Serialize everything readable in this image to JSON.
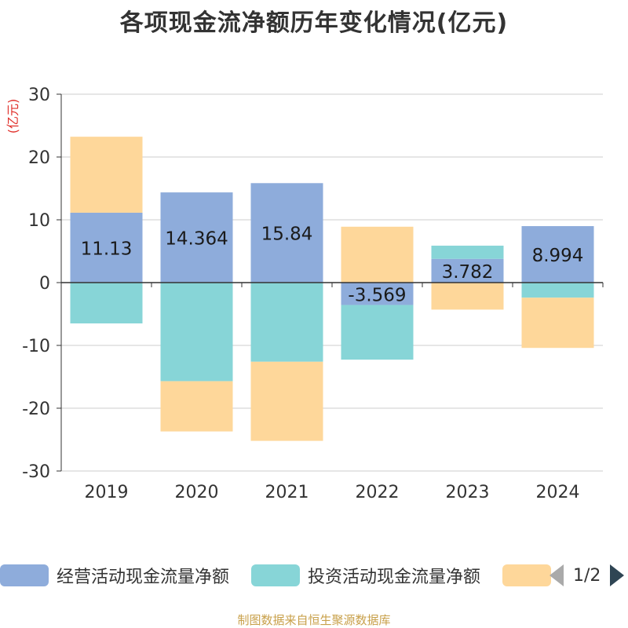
{
  "chart_data": {
    "type": "bar",
    "stacked": true,
    "title": "各项现金流净额历年变化情况(亿元)",
    "ylabel": "(亿元)",
    "xlabel": "",
    "ylim": [
      -30,
      30
    ],
    "yticks": [
      30,
      20,
      10,
      0,
      -10,
      -20,
      -30
    ],
    "categories": [
      "2019",
      "2020",
      "2021",
      "2022",
      "2023",
      "2024"
    ],
    "series": [
      {
        "name": "经营活动现金流量净额",
        "color": "#8eacdb",
        "values": [
          11.13,
          14.364,
          15.84,
          -3.569,
          3.782,
          8.994
        ],
        "labels": [
          "11.13",
          "14.364",
          "15.84",
          "-3.569",
          "3.782",
          "8.994"
        ]
      },
      {
        "name": "投资活动现金流量净额",
        "color": "#87d5d7",
        "values": [
          -6.5,
          -15.7,
          -12.6,
          -8.7,
          2.1,
          -2.4
        ]
      },
      {
        "name": "",
        "color": "#fed79a",
        "values": [
          12.1,
          -8.0,
          -12.6,
          8.9,
          -4.3,
          -8.0
        ]
      }
    ],
    "legend_position": "bottom",
    "grid": true
  },
  "legend": {
    "page_indicator": "1/2"
  },
  "footer": {
    "source": "制图数据来自恒生聚源数据库",
    "color": "#c8a04a"
  },
  "colors": {
    "axis_label": "#333333",
    "unit_label": "#e0302b",
    "grid": "#cccccc"
  }
}
